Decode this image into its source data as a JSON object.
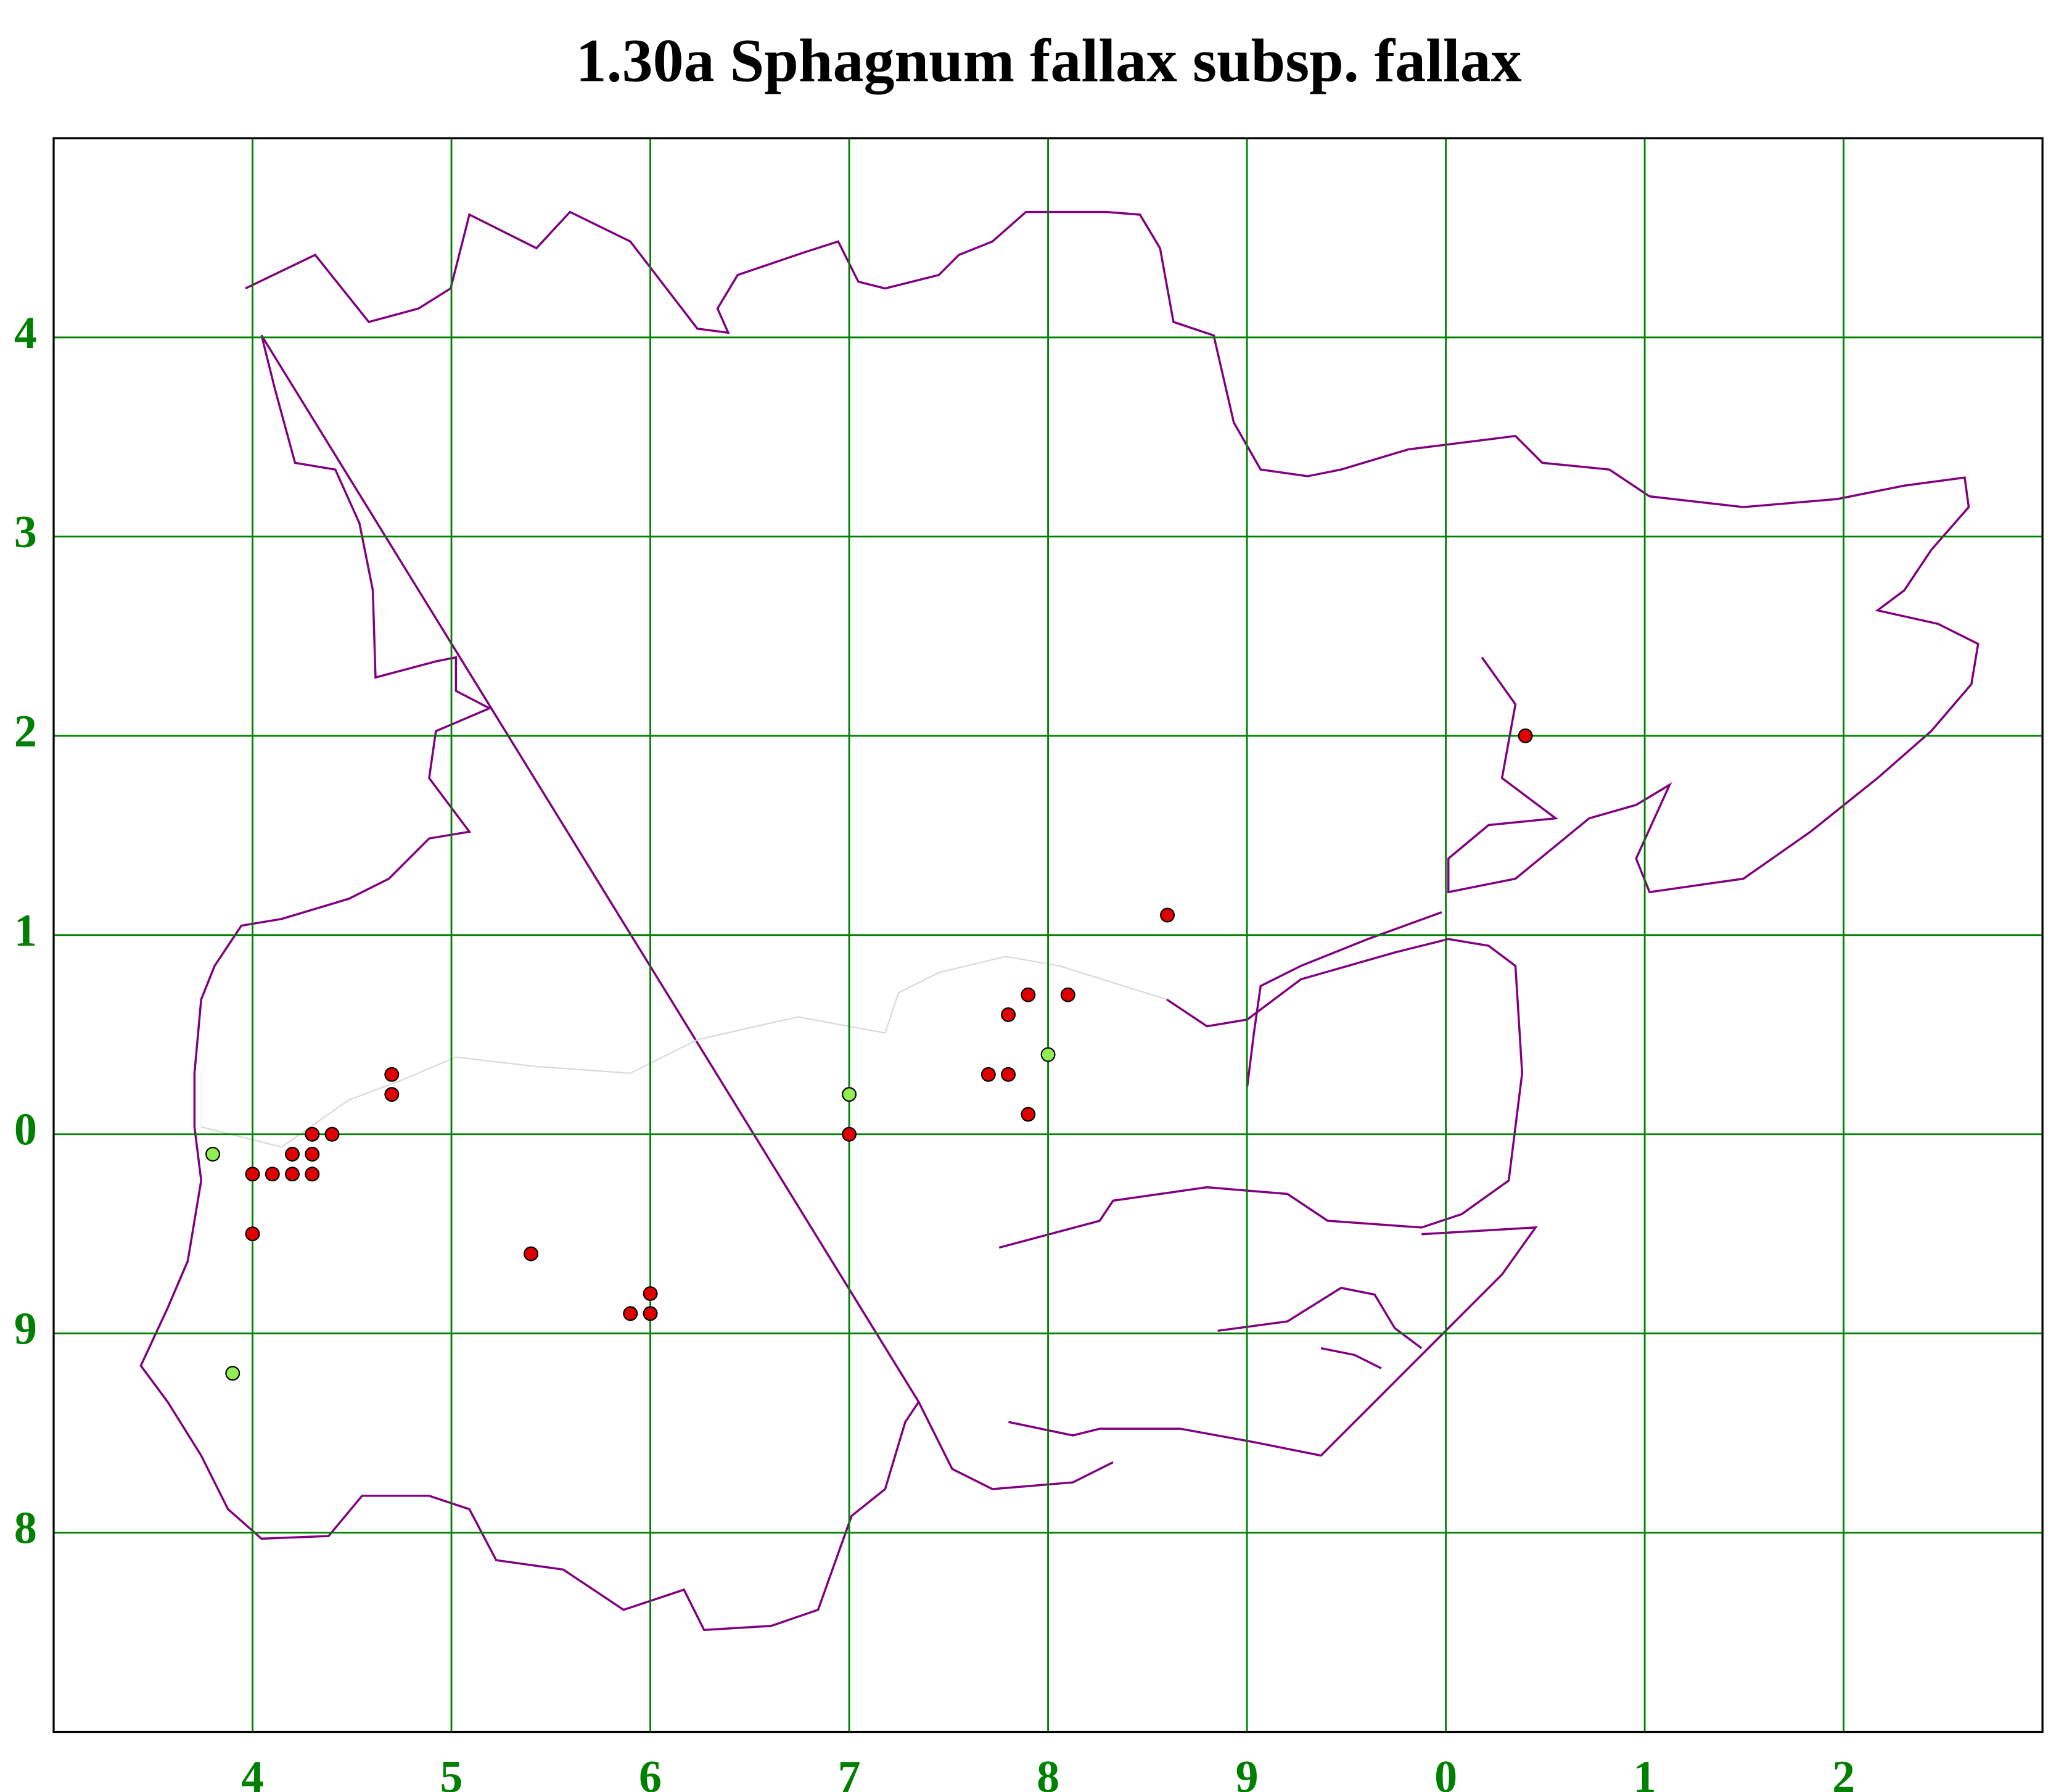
{
  "chart_data": {
    "type": "scatter",
    "title": "1.30a Sphagnum fallax subsp. fallax",
    "xlim": [
      3,
      13
    ],
    "xticks": [
      4,
      5,
      6,
      7,
      8,
      9,
      {
        "value": 10,
        "label": "0"
      },
      {
        "value": 11,
        "label": "1"
      },
      {
        "value": 12,
        "label": "2"
      }
    ],
    "ylim": [
      7,
      15
    ],
    "yticks": [
      8,
      9,
      {
        "value": 10,
        "label": "0"
      },
      {
        "value": 11,
        "label": "1"
      },
      {
        "value": 12,
        "label": "2"
      },
      {
        "value": 13,
        "label": "3"
      },
      {
        "value": 14,
        "label": "4"
      }
    ],
    "grid": true,
    "grid_color": "#008000",
    "tick_label_color": "#008000",
    "series": [
      {
        "color": "#e00000",
        "x": [
          10.4,
          8.6,
          7.9,
          8.1,
          7.8,
          7.7,
          7.8,
          7.9,
          7.0,
          4.7,
          4.7,
          4.3,
          4.4,
          4.2,
          4.3,
          4.0,
          4.1,
          4.2,
          4.3,
          4.0,
          5.4,
          6.0,
          5.9,
          6.0
        ],
        "values": [
          12.0,
          11.1,
          10.7,
          10.7,
          10.6,
          10.3,
          10.3,
          10.1,
          10.0,
          10.3,
          10.2,
          10.0,
          10.0,
          9.9,
          9.9,
          9.8,
          9.8,
          9.8,
          9.8,
          9.5,
          9.4,
          9.2,
          9.1,
          9.1
        ]
      },
      {
        "color": "#90ee50",
        "x": [
          8.0,
          7.0,
          3.8,
          3.9
        ],
        "values": [
          10.4,
          10.2,
          9.9,
          8.8
        ]
      }
    ]
  }
}
